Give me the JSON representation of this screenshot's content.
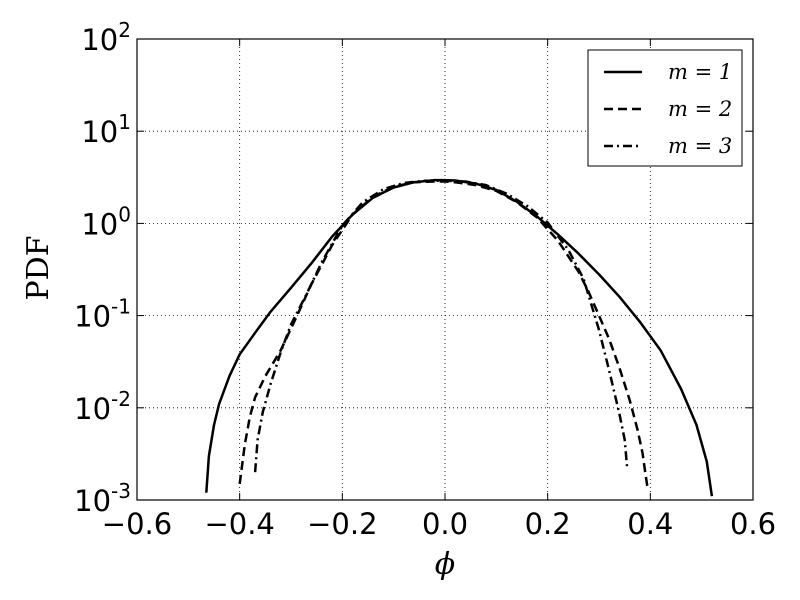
{
  "chart_data": {
    "type": "line",
    "xlabel": "ϕ",
    "ylabel": "PDF",
    "xlim": [
      -0.6,
      0.6
    ],
    "ylim": [
      0.001,
      100
    ],
    "yscale": "log",
    "grid": true,
    "legend_position": "top-right",
    "x_ticks": [
      {
        "value": -0.6,
        "label": "−0.6"
      },
      {
        "value": -0.4,
        "label": "−0.4"
      },
      {
        "value": -0.2,
        "label": "−0.2"
      },
      {
        "value": 0.0,
        "label": "0.0"
      },
      {
        "value": 0.2,
        "label": "0.2"
      },
      {
        "value": 0.4,
        "label": "0.4"
      },
      {
        "value": 0.6,
        "label": "0.6"
      }
    ],
    "y_ticks": [
      {
        "value": 100,
        "base": "10",
        "exp": "2"
      },
      {
        "value": 10,
        "base": "10",
        "exp": "1"
      },
      {
        "value": 1,
        "base": "10",
        "exp": "0"
      },
      {
        "value": 0.1,
        "base": "10",
        "exp": "-1"
      },
      {
        "value": 0.01,
        "base": "10",
        "exp": "-2"
      },
      {
        "value": 0.001,
        "base": "10",
        "exp": "-3"
      }
    ],
    "series": [
      {
        "name": "m = 1",
        "style": "solid",
        "color": "#000000",
        "x": [
          -0.465,
          -0.46,
          -0.45,
          -0.44,
          -0.42,
          -0.4,
          -0.37,
          -0.34,
          -0.3,
          -0.26,
          -0.22,
          -0.18,
          -0.14,
          -0.1,
          -0.06,
          -0.02,
          0.0,
          0.02,
          0.06,
          0.1,
          0.14,
          0.18,
          0.22,
          0.26,
          0.3,
          0.34,
          0.38,
          0.42,
          0.46,
          0.49,
          0.51,
          0.52
        ],
        "y": [
          0.0012,
          0.003,
          0.0065,
          0.011,
          0.022,
          0.038,
          0.065,
          0.11,
          0.2,
          0.37,
          0.72,
          1.25,
          1.9,
          2.45,
          2.8,
          2.95,
          2.95,
          2.92,
          2.7,
          2.3,
          1.72,
          1.18,
          0.76,
          0.47,
          0.28,
          0.16,
          0.085,
          0.042,
          0.016,
          0.0065,
          0.0026,
          0.0011
        ]
      },
      {
        "name": "m = 2",
        "style": "dashed",
        "color": "#000000",
        "x": [
          -0.4,
          -0.39,
          -0.38,
          -0.37,
          -0.35,
          -0.32,
          -0.29,
          -0.26,
          -0.22,
          -0.18,
          -0.14,
          -0.1,
          -0.06,
          -0.02,
          0.0,
          0.02,
          0.06,
          0.1,
          0.14,
          0.18,
          0.22,
          0.26,
          0.28,
          0.3,
          0.32,
          0.34,
          0.36,
          0.375,
          0.385,
          0.39,
          0.395
        ],
        "y": [
          0.0015,
          0.004,
          0.008,
          0.013,
          0.022,
          0.042,
          0.095,
          0.22,
          0.58,
          1.25,
          1.95,
          2.5,
          2.8,
          2.85,
          2.85,
          2.8,
          2.6,
          2.25,
          1.7,
          1.15,
          0.65,
          0.3,
          0.18,
          0.1,
          0.055,
          0.027,
          0.012,
          0.0058,
          0.0032,
          0.002,
          0.0013
        ]
      },
      {
        "name": "m = 3",
        "style": "dashdot",
        "color": "#000000",
        "x": [
          -0.37,
          -0.365,
          -0.355,
          -0.34,
          -0.32,
          -0.3,
          -0.27,
          -0.24,
          -0.2,
          -0.16,
          -0.12,
          -0.08,
          -0.04,
          0.0,
          0.04,
          0.08,
          0.12,
          0.16,
          0.2,
          0.24,
          0.27,
          0.3,
          0.32,
          0.34,
          0.35,
          0.355
        ],
        "y": [
          0.002,
          0.0045,
          0.009,
          0.018,
          0.04,
          0.08,
          0.17,
          0.38,
          0.95,
          1.7,
          2.35,
          2.75,
          2.9,
          2.9,
          2.85,
          2.6,
          2.1,
          1.55,
          1.02,
          0.52,
          0.25,
          0.07,
          0.025,
          0.0085,
          0.0045,
          0.0022
        ]
      }
    ]
  }
}
